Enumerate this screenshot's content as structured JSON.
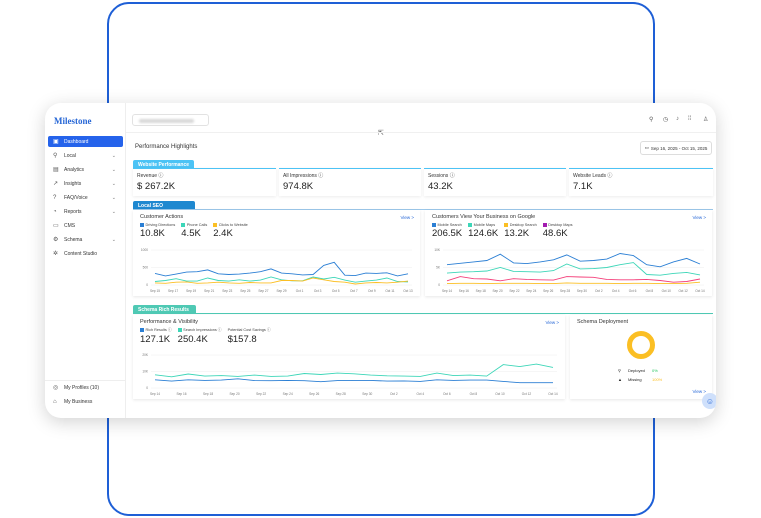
{
  "brand": "Milestone",
  "sidebar": {
    "items": [
      {
        "label": "Dashboard",
        "icon": "dashboard-icon",
        "active": true
      },
      {
        "label": "Local",
        "icon": "location-icon",
        "chevron": true
      },
      {
        "label": "Analytics",
        "icon": "analytics-icon",
        "chevron": true
      },
      {
        "label": "Insights",
        "icon": "insights-icon",
        "chevron": true
      },
      {
        "label": "FAQ/Voice",
        "icon": "faq-icon",
        "chevron": true
      },
      {
        "label": "Reports",
        "icon": "reports-icon",
        "chevron": true
      },
      {
        "label": "CMS",
        "icon": "cms-icon"
      },
      {
        "label": "Schema",
        "icon": "schema-icon",
        "chevron": true
      },
      {
        "label": "Content Studio",
        "icon": "content-studio-icon"
      }
    ],
    "bottom": [
      {
        "label": "My Profiles (10)",
        "icon": "profiles-icon"
      },
      {
        "label": "My Business",
        "icon": "business-icon"
      }
    ]
  },
  "header": {
    "icons": [
      "search-icon",
      "clock-icon",
      "bell-icon",
      "apps-grid-icon",
      "user-icon"
    ]
  },
  "main": {
    "title": "Performance Highlights",
    "date_range": "Sep 16, 2025 - Oct 15, 2025",
    "website_performance": {
      "tab": "Website Performance",
      "kpis": [
        {
          "label": "Revenue",
          "value": "$ 267.2K"
        },
        {
          "label": "All Impressions",
          "value": "974.8K"
        },
        {
          "label": "Sessions",
          "value": "43.2K"
        },
        {
          "label": "Website Leads",
          "value": "7.1K"
        }
      ]
    },
    "local_seo": {
      "tab": "Local SEO",
      "customer_actions": {
        "title": "Customer Actions",
        "view": "View >",
        "legend": [
          {
            "label": "Driving Directions",
            "value": "10.8K",
            "color": "#2b7fd4"
          },
          {
            "label": "Phone Calls",
            "value": "4.5K",
            "color": "#3dd6b8"
          },
          {
            "label": "Clicks to Website",
            "value": "2.4K",
            "color": "#fbbf24"
          }
        ]
      },
      "google_views": {
        "title": "Customers View Your Business on Google",
        "view": "View >",
        "legend": [
          {
            "label": "Mobile Search",
            "value": "206.5K",
            "color": "#2b7fd4"
          },
          {
            "label": "Mobile Maps",
            "value": "124.6K",
            "color": "#3dd6b8"
          },
          {
            "label": "Desktop Search",
            "value": "13.2K",
            "color": "#fbbf24"
          },
          {
            "label": "Desktop Maps",
            "value": "48.6K",
            "color": "#a21caf"
          }
        ]
      }
    },
    "schema": {
      "tab": "Schema Rich Results",
      "performance": {
        "title": "Performance & Visibility",
        "view": "View >",
        "legend": [
          {
            "label": "Rich Results",
            "value": "127.1K",
            "color": "#2b7fd4"
          },
          {
            "label": "Search Impressions",
            "value": "250.4K",
            "color": "#3dd6b8"
          },
          {
            "label": "Potential Cost Savings",
            "value": "$157.8"
          }
        ]
      },
      "deployment": {
        "title": "Schema Deployment",
        "view": "View >",
        "rows": [
          {
            "label": "Deployed",
            "value": "0%",
            "color": "#22c55e"
          },
          {
            "label": "Missing",
            "value": "100%",
            "color": "#fbbf24"
          }
        ]
      }
    }
  },
  "chart_data": [
    {
      "type": "line",
      "ylim": [
        0,
        1000
      ],
      "y_ticks": [
        "1000",
        "500",
        "0"
      ],
      "grid": true,
      "x_ticks": [
        "Sep 15",
        "Sep 17",
        "Sep 19",
        "Sep 21",
        "Sep 23",
        "Sep 25",
        "Sep 27",
        "Sep 29",
        "Oct 1",
        "Oct 3",
        "Oct 5",
        "Oct 7",
        "Oct 9",
        "Oct 11",
        "Oct 13"
      ],
      "series": [
        {
          "name": "Driving Directions",
          "color": "#2b7fd4",
          "values": [
            330,
            260,
            310,
            370,
            380,
            430,
            320,
            300,
            310,
            340,
            380,
            460,
            340,
            320,
            290,
            300,
            560,
            650,
            280,
            270,
            340,
            330,
            350,
            260,
            320
          ]
        },
        {
          "name": "Phone Calls",
          "color": "#3dd6b8",
          "values": [
            100,
            130,
            180,
            110,
            110,
            200,
            130,
            110,
            150,
            110,
            140,
            230,
            150,
            120,
            120,
            230,
            170,
            220,
            140,
            80,
            110,
            140,
            200,
            100,
            90
          ]
        },
        {
          "name": "Clicks to Website",
          "color": "#fbbf24",
          "values": [
            60,
            50,
            80,
            90,
            50,
            60,
            80,
            60,
            50,
            70,
            60,
            60,
            130,
            130,
            110,
            200,
            150,
            100,
            80,
            30,
            60,
            70,
            60,
            80,
            110
          ]
        }
      ]
    },
    {
      "type": "line",
      "ylim": [
        0,
        10000
      ],
      "y_ticks": [
        "10K",
        "5K",
        "0"
      ],
      "grid": true,
      "x_ticks": [
        "Sep 14",
        "Sep 16",
        "Sep 18",
        "Sep 20",
        "Sep 22",
        "Sep 24",
        "Sep 26",
        "Sep 28",
        "Sep 30",
        "Oct 2",
        "Oct 4",
        "Oct 6",
        "Oct 8",
        "Oct 10",
        "Oct 12",
        "Oct 14"
      ],
      "series": [
        {
          "name": "Mobile Search",
          "color": "#2b7fd4",
          "values": [
            5800,
            6200,
            6600,
            7000,
            8800,
            6300,
            6100,
            6600,
            7200,
            8600,
            6800,
            7000,
            7400,
            9000,
            8400,
            5800,
            5200,
            6600,
            7600,
            6000
          ]
        },
        {
          "name": "Mobile Maps",
          "color": "#3dd6b8",
          "values": [
            3400,
            3700,
            3800,
            4000,
            5000,
            3900,
            3800,
            3700,
            4100,
            6000,
            4600,
            4700,
            5000,
            5800,
            6400,
            3000,
            2800,
            3300,
            3600,
            2900
          ]
        },
        {
          "name": "Desktop Maps",
          "color": "#f43f7a",
          "values": [
            1200,
            2400,
            1800,
            1700,
            1200,
            1800,
            1600,
            1500,
            1400,
            2400,
            2300,
            2200,
            1600,
            1500,
            1500,
            1600,
            1300,
            800,
            1000,
            1700
          ]
        },
        {
          "name": "Desktop Search",
          "color": "#fbbf24",
          "values": [
            400,
            500,
            500,
            400,
            500,
            500,
            500,
            400,
            400,
            600,
            500,
            500,
            500,
            400,
            500,
            500,
            400,
            400,
            500,
            800
          ]
        }
      ]
    },
    {
      "type": "line",
      "ylim": [
        0,
        20000
      ],
      "y_ticks": [
        "20K",
        "10K",
        "0"
      ],
      "grid": true,
      "x_ticks": [
        "Sep 14",
        "Sep 16",
        "Sep 18",
        "Sep 20",
        "Sep 22",
        "Sep 24",
        "Sep 26",
        "Sep 28",
        "Sep 30",
        "Oct 2",
        "Oct 4",
        "Oct 6",
        "Oct 8",
        "Oct 10",
        "Oct 12",
        "Oct 14"
      ],
      "series": [
        {
          "name": "Search Impressions",
          "color": "#3dd6b8",
          "values": [
            8000,
            6800,
            8500,
            7200,
            7500,
            7000,
            7800,
            7000,
            7200,
            8800,
            8200,
            9000,
            8600,
            7800,
            7400,
            7200,
            7000,
            9000,
            7500,
            7800,
            7200,
            14200,
            13000,
            14500,
            12500
          ]
        },
        {
          "name": "Rich Results",
          "color": "#2b7fd4",
          "values": [
            5000,
            4200,
            5000,
            4600,
            4800,
            5600,
            4500,
            4400,
            4600,
            4400,
            3800,
            4500,
            4600,
            4600,
            4200,
            4300,
            4000,
            5000,
            4600,
            4800,
            4800,
            4000,
            3200,
            3200,
            3200
          ]
        }
      ]
    }
  ]
}
